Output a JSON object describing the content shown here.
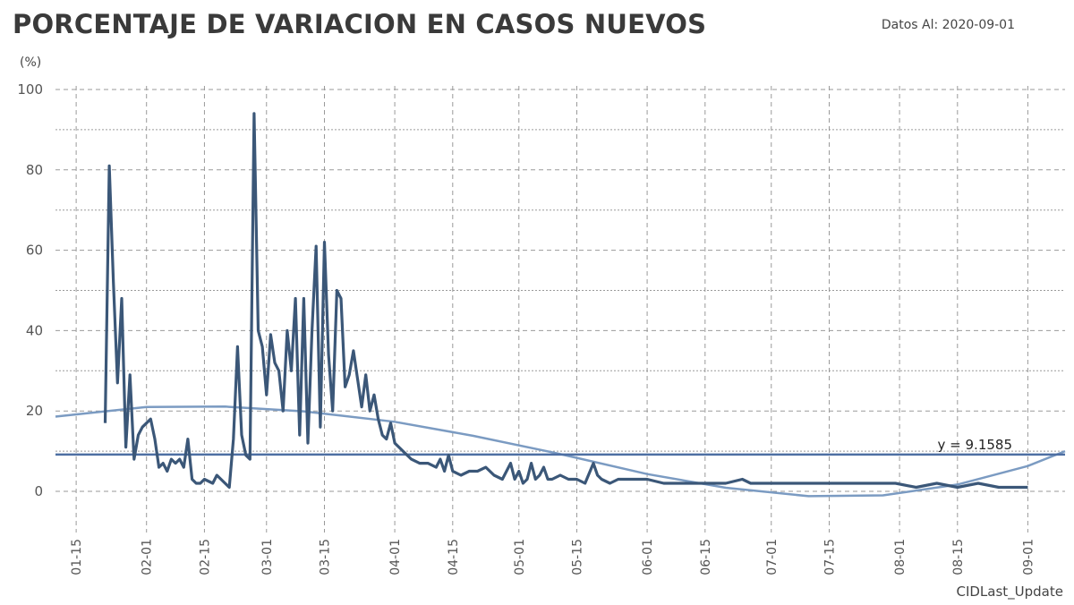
{
  "header": {
    "title": "PORCENTAJE DE VARIACION EN CASOS NUEVOS",
    "date_label": "Datos Al: 2020-09-01"
  },
  "footer": {
    "text": "CIDLast_Update"
  },
  "colors": {
    "series": "#3b5778",
    "trend": "#7b9bc2",
    "mean": "#4e6fa3",
    "grid": "#9a9a9a"
  },
  "chart_data": {
    "type": "line",
    "title": "PORCENTAJE DE VARIACION EN CASOS NUEVOS",
    "ylabel": "(%)",
    "xlabel": "",
    "ylim": [
      -10,
      100
    ],
    "xlim": [
      "2020-01-10",
      "2020-09-10"
    ],
    "y_ticks": [
      0,
      20,
      40,
      60,
      80,
      100
    ],
    "x_tick_labels": [
      "01-15",
      "02-01",
      "02-15",
      "03-01",
      "03-15",
      "04-01",
      "04-15",
      "05-01",
      "05-15",
      "06-01",
      "06-15",
      "07-01",
      "07-15",
      "08-01",
      "08-15",
      "09-01"
    ],
    "x_tick_dates": [
      "2020-01-15",
      "2020-02-01",
      "2020-02-15",
      "2020-03-01",
      "2020-03-15",
      "2020-04-01",
      "2020-04-15",
      "2020-05-01",
      "2020-05-15",
      "2020-06-01",
      "2020-06-15",
      "2020-07-01",
      "2020-07-15",
      "2020-08-01",
      "2020-08-15",
      "2020-09-01"
    ],
    "grid": true,
    "series": [
      {
        "type": "line",
        "x": [
          "2020-01-22",
          "2020-01-23",
          "2020-01-24",
          "2020-01-25",
          "2020-01-26",
          "2020-01-27",
          "2020-01-28",
          "2020-01-29",
          "2020-01-30",
          "2020-01-31",
          "2020-02-02",
          "2020-02-03",
          "2020-02-04",
          "2020-02-05",
          "2020-02-06",
          "2020-02-07",
          "2020-02-08",
          "2020-02-09",
          "2020-02-10",
          "2020-02-11",
          "2020-02-12",
          "2020-02-13",
          "2020-02-14",
          "2020-02-15",
          "2020-02-17",
          "2020-02-18",
          "2020-02-19",
          "2020-02-20",
          "2020-02-21",
          "2020-02-22",
          "2020-02-23",
          "2020-02-24",
          "2020-02-25",
          "2020-02-26",
          "2020-02-27",
          "2020-02-28",
          "2020-02-29",
          "2020-03-01",
          "2020-03-02",
          "2020-03-03",
          "2020-03-04",
          "2020-03-05",
          "2020-03-06",
          "2020-03-07",
          "2020-03-08",
          "2020-03-09",
          "2020-03-10",
          "2020-03-11",
          "2020-03-12",
          "2020-03-13",
          "2020-03-14",
          "2020-03-15",
          "2020-03-16",
          "2020-03-17",
          "2020-03-18",
          "2020-03-19",
          "2020-03-20",
          "2020-03-21",
          "2020-03-22",
          "2020-03-23",
          "2020-03-24",
          "2020-03-25",
          "2020-03-26",
          "2020-03-27",
          "2020-03-28",
          "2020-03-29",
          "2020-03-30",
          "2020-03-31",
          "2020-04-01",
          "2020-04-03",
          "2020-04-05",
          "2020-04-07",
          "2020-04-09",
          "2020-04-11",
          "2020-04-12",
          "2020-04-13",
          "2020-04-14",
          "2020-04-15",
          "2020-04-17",
          "2020-04-19",
          "2020-04-21",
          "2020-04-23",
          "2020-04-25",
          "2020-04-27",
          "2020-04-29",
          "2020-04-30",
          "2020-05-01",
          "2020-05-02",
          "2020-05-03",
          "2020-05-04",
          "2020-05-05",
          "2020-05-06",
          "2020-05-07",
          "2020-05-08",
          "2020-05-09",
          "2020-05-11",
          "2020-05-13",
          "2020-05-15",
          "2020-05-17",
          "2020-05-19",
          "2020-05-20",
          "2020-05-21",
          "2020-05-23",
          "2020-05-25",
          "2020-05-27",
          "2020-05-29",
          "2020-06-01",
          "2020-06-05",
          "2020-06-10",
          "2020-06-15",
          "2020-06-20",
          "2020-06-24",
          "2020-06-26",
          "2020-06-30",
          "2020-07-05",
          "2020-07-10",
          "2020-07-15",
          "2020-07-20",
          "2020-07-25",
          "2020-07-31",
          "2020-08-05",
          "2020-08-10",
          "2020-08-15",
          "2020-08-20",
          "2020-08-25",
          "2020-08-30",
          "2020-09-01"
        ],
        "y": [
          17,
          81,
          52,
          27,
          48,
          11,
          29,
          8,
          14,
          16,
          18,
          13,
          6,
          7,
          5,
          8,
          7,
          8,
          6,
          13,
          3,
          2,
          2,
          3,
          2,
          4,
          3,
          2,
          1,
          13,
          36,
          14,
          9,
          8,
          94,
          40,
          36,
          24,
          39,
          32,
          30,
          20,
          40,
          30,
          48,
          14,
          48,
          12,
          40,
          61,
          16,
          62,
          34,
          20,
          50,
          48,
          26,
          29,
          35,
          28,
          21,
          29,
          20,
          24,
          18,
          14,
          13,
          17,
          12,
          10,
          8,
          7,
          7,
          6,
          8,
          5,
          9,
          5,
          4,
          5,
          5,
          6,
          4,
          3,
          7,
          3,
          5,
          2,
          3,
          7,
          3,
          4,
          6,
          3,
          3,
          4,
          3,
          3,
          2,
          7,
          4,
          3,
          2,
          3,
          3,
          3,
          3,
          2,
          2,
          2,
          2,
          3,
          2,
          2,
          2,
          2,
          2,
          2,
          2,
          2,
          1,
          2,
          1,
          2,
          1,
          1,
          1
        ]
      }
    ],
    "trend_line": {
      "x": [
        "2020-01-10",
        "2020-02-01",
        "2020-02-20",
        "2020-03-10",
        "2020-04-01",
        "2020-04-20",
        "2020-05-10",
        "2020-06-01",
        "2020-06-20",
        "2020-07-10",
        "2020-07-28",
        "2020-08-15",
        "2020-09-01",
        "2020-09-10"
      ],
      "y": [
        18.6,
        21.0,
        21.1,
        19.9,
        17.3,
        13.8,
        9.5,
        4.3,
        0.9,
        -1.2,
        -1.0,
        1.7,
        6.3,
        10.0
      ]
    },
    "mean_line": {
      "y": 9.1585,
      "label": "y = 9.1585"
    }
  }
}
